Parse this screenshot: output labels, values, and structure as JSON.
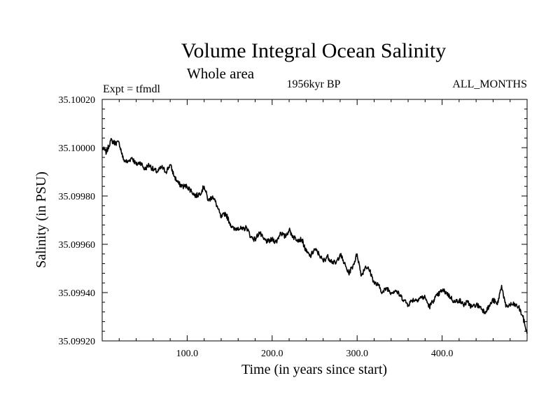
{
  "chart_data": {
    "type": "line",
    "title": "Volume Integral Ocean Salinity",
    "subtitle": "Whole area",
    "experiment_label": "Expt = tfmdl",
    "epoch_label": "1956kyr BP",
    "months_label": "ALL_MONTHS",
    "xlabel": "Time (in years since start)",
    "ylabel": "Salinity (in PSU)",
    "xlim": [
      0,
      500
    ],
    "ylim": [
      35.0992,
      35.1002
    ],
    "x_ticks": [
      100,
      200,
      300,
      400
    ],
    "x_tick_labels": [
      "100.0",
      "200.0",
      "300.0",
      "400.0"
    ],
    "y_ticks": [
      35.0992,
      35.0994,
      35.0996,
      35.0998,
      35.1,
      35.1002
    ],
    "y_tick_labels": [
      "35.09920",
      "35.09940",
      "35.09960",
      "35.09980",
      "35.10000",
      "35.10020"
    ],
    "line_color": "#000000",
    "series": [
      {
        "name": "Salinity",
        "x": [
          0,
          5,
          10,
          15,
          20,
          25,
          30,
          35,
          40,
          45,
          50,
          55,
          60,
          65,
          70,
          75,
          80,
          85,
          90,
          95,
          100,
          105,
          110,
          115,
          120,
          125,
          130,
          135,
          140,
          145,
          150,
          155,
          160,
          165,
          170,
          175,
          180,
          185,
          190,
          195,
          200,
          205,
          210,
          215,
          220,
          225,
          230,
          235,
          240,
          245,
          250,
          255,
          260,
          265,
          270,
          275,
          280,
          285,
          290,
          295,
          300,
          305,
          310,
          315,
          320,
          325,
          330,
          335,
          340,
          345,
          350,
          355,
          360,
          365,
          370,
          375,
          380,
          385,
          390,
          395,
          400,
          405,
          410,
          415,
          420,
          425,
          430,
          435,
          440,
          445,
          450,
          455,
          460,
          465,
          470,
          475,
          480,
          485,
          490,
          495,
          500
        ],
        "values": [
          35.1,
          35.09998,
          35.10003,
          35.10002,
          35.10002,
          35.09995,
          35.09994,
          35.09996,
          35.09993,
          35.09994,
          35.09991,
          35.09993,
          35.09991,
          35.0999,
          35.09992,
          35.0999,
          35.09993,
          35.09988,
          35.09985,
          35.09984,
          35.09984,
          35.09982,
          35.0998,
          35.09981,
          35.09984,
          35.09978,
          35.0998,
          35.09976,
          35.09971,
          35.09973,
          35.09969,
          35.09966,
          35.09967,
          35.09966,
          35.09967,
          35.09963,
          35.09962,
          35.09965,
          35.09962,
          35.09961,
          35.09962,
          35.09961,
          35.09965,
          35.09963,
          35.09966,
          35.09963,
          35.09962,
          35.09962,
          35.09957,
          35.09955,
          35.09958,
          35.09956,
          35.09953,
          35.09955,
          35.09953,
          35.09952,
          35.09956,
          35.09952,
          35.09948,
          35.09951,
          35.09956,
          35.09947,
          35.09951,
          35.09949,
          35.09944,
          35.09943,
          35.0994,
          35.09942,
          35.0994,
          35.09941,
          35.09939,
          35.09937,
          35.09935,
          35.09937,
          35.09937,
          35.09938,
          35.09938,
          35.09934,
          35.09937,
          35.09939,
          35.09941,
          35.0994,
          35.09938,
          35.09936,
          35.09937,
          35.09935,
          35.09936,
          35.09934,
          35.09935,
          35.09934,
          35.09932,
          35.09934,
          35.09937,
          35.09935,
          35.09943,
          35.09934,
          35.09935,
          35.09935,
          35.09934,
          35.0993,
          35.09923
        ]
      }
    ]
  }
}
